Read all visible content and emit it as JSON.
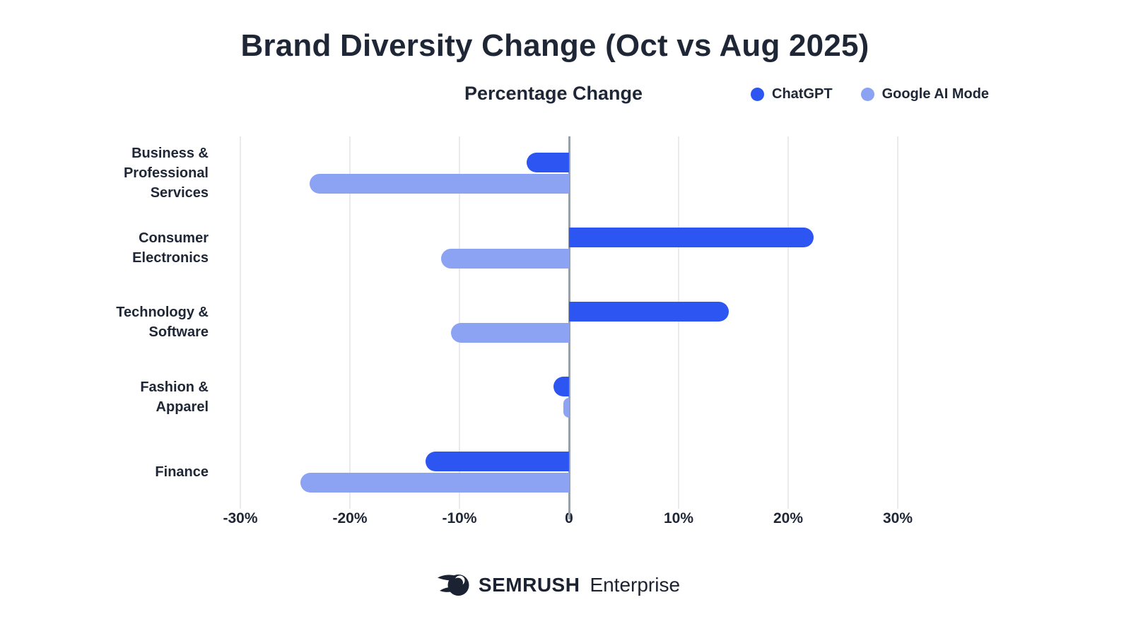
{
  "title": "Brand Diversity Change (Oct vs Aug 2025)",
  "subtitle": "Percentage Change",
  "legend": [
    {
      "label": "ChatGPT",
      "color": "#2c55f2"
    },
    {
      "label": "Google AI Mode",
      "color": "#8ba3f2"
    }
  ],
  "footer": {
    "brand": "SEMRUSH",
    "suffix": "Enterprise"
  },
  "colors": {
    "text": "#1f2736",
    "gridline": "#e9e9ee",
    "zero_line": "#9aa0a8",
    "background": "#ffffff",
    "chatgpt_blue": "#2c55f2",
    "google_light_blue": "#8ba3f2"
  },
  "chart_data": {
    "type": "bar",
    "orientation": "horizontal",
    "title": "Brand Diversity Change (Oct vs Aug 2025)",
    "xlabel": "Percentage Change",
    "categories": [
      "Business & Professional Services",
      "Consumer Electronics",
      "Technology & Software",
      "Fashion & Apparel",
      "Finance"
    ],
    "category_label_lines": [
      [
        "Business &",
        "Professional",
        "Services"
      ],
      [
        "Consumer",
        "Electronics"
      ],
      [
        "Technology &",
        "Software"
      ],
      [
        "Fashion &",
        "Apparel"
      ],
      [
        "Finance"
      ]
    ],
    "series": [
      {
        "name": "ChatGPT",
        "color": "#2c55f2",
        "values": [
          -3.9,
          22.3,
          14.6,
          -1.4,
          -13.1
        ]
      },
      {
        "name": "Google AI Mode",
        "color": "#8ba3f2",
        "values": [
          -23.7,
          -11.7,
          -10.8,
          -0.5,
          -24.5
        ]
      }
    ],
    "x_ticks": [
      "-30%",
      "-20%",
      "-10%",
      "0",
      "10%",
      "20%",
      "30%"
    ],
    "x_tick_values": [
      -30,
      -20,
      -10,
      0,
      10,
      20,
      30
    ],
    "xlim": [
      -30,
      30
    ],
    "grid": "vertical-only",
    "legend_position": "top-right",
    "unit": "percent"
  }
}
